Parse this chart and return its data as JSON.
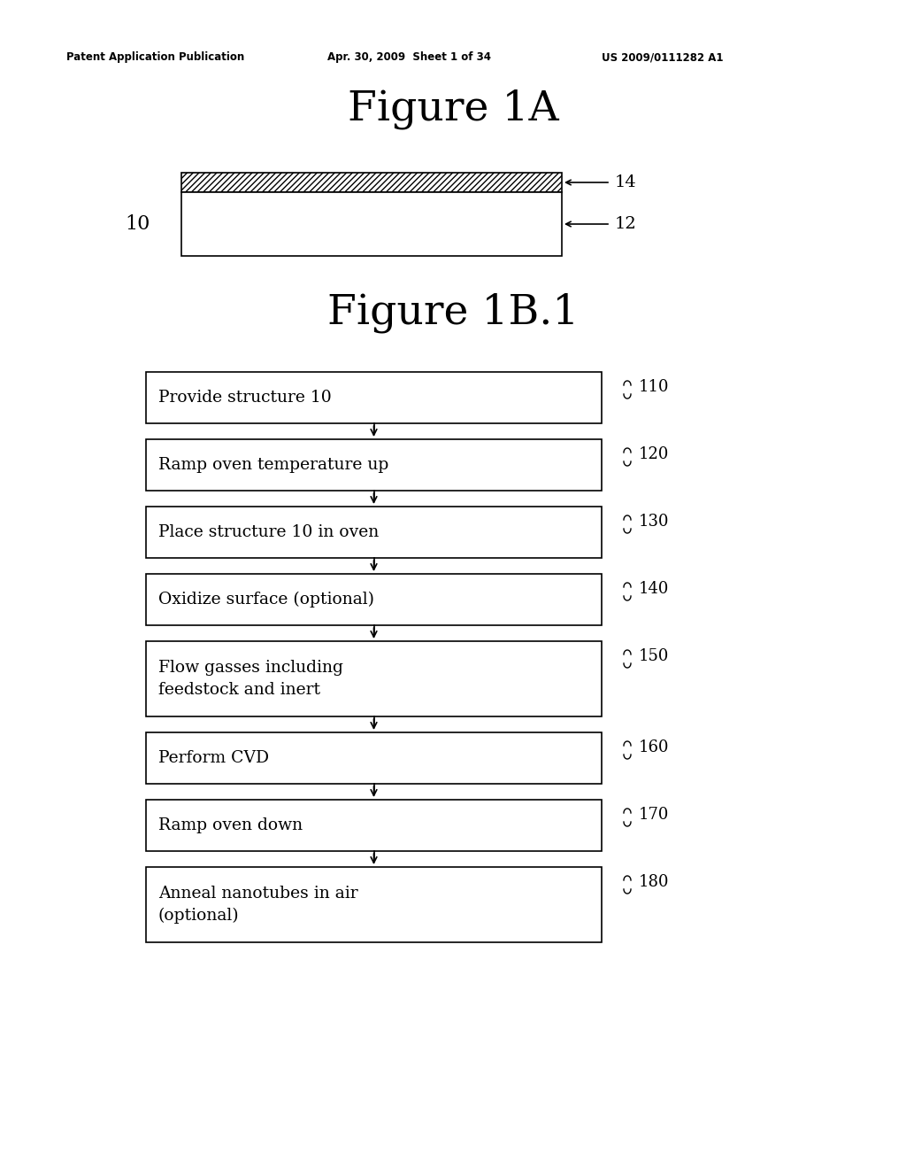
{
  "bg_color": "#ffffff",
  "header_left": "Patent Application Publication",
  "header_center": "Apr. 30, 2009  Sheet 1 of 34",
  "header_right": "US 2009/0111282 A1",
  "header_fontsize": 8.5,
  "fig1a_title": "Figure 1A",
  "fig1b_title": "Figure 1B.1",
  "label_10": "10",
  "label_12": "12",
  "label_14": "14",
  "flowchart_steps": [
    {
      "label": "Provide structure 10",
      "ref": "110",
      "multiline": false
    },
    {
      "label": "Ramp oven temperature up",
      "ref": "120",
      "multiline": false
    },
    {
      "label": "Place structure 10 in oven",
      "ref": "130",
      "multiline": false
    },
    {
      "label": "Oxidize surface (optional)",
      "ref": "140",
      "multiline": false
    },
    {
      "label": "Flow gasses including\nfeedstock and inert",
      "ref": "150",
      "multiline": true
    },
    {
      "label": "Perform CVD",
      "ref": "160",
      "multiline": false
    },
    {
      "label": "Ramp oven down",
      "ref": "170",
      "multiline": false
    },
    {
      "label": "Anneal nanotubes in air\n(optional)",
      "ref": "180",
      "multiline": true
    }
  ]
}
